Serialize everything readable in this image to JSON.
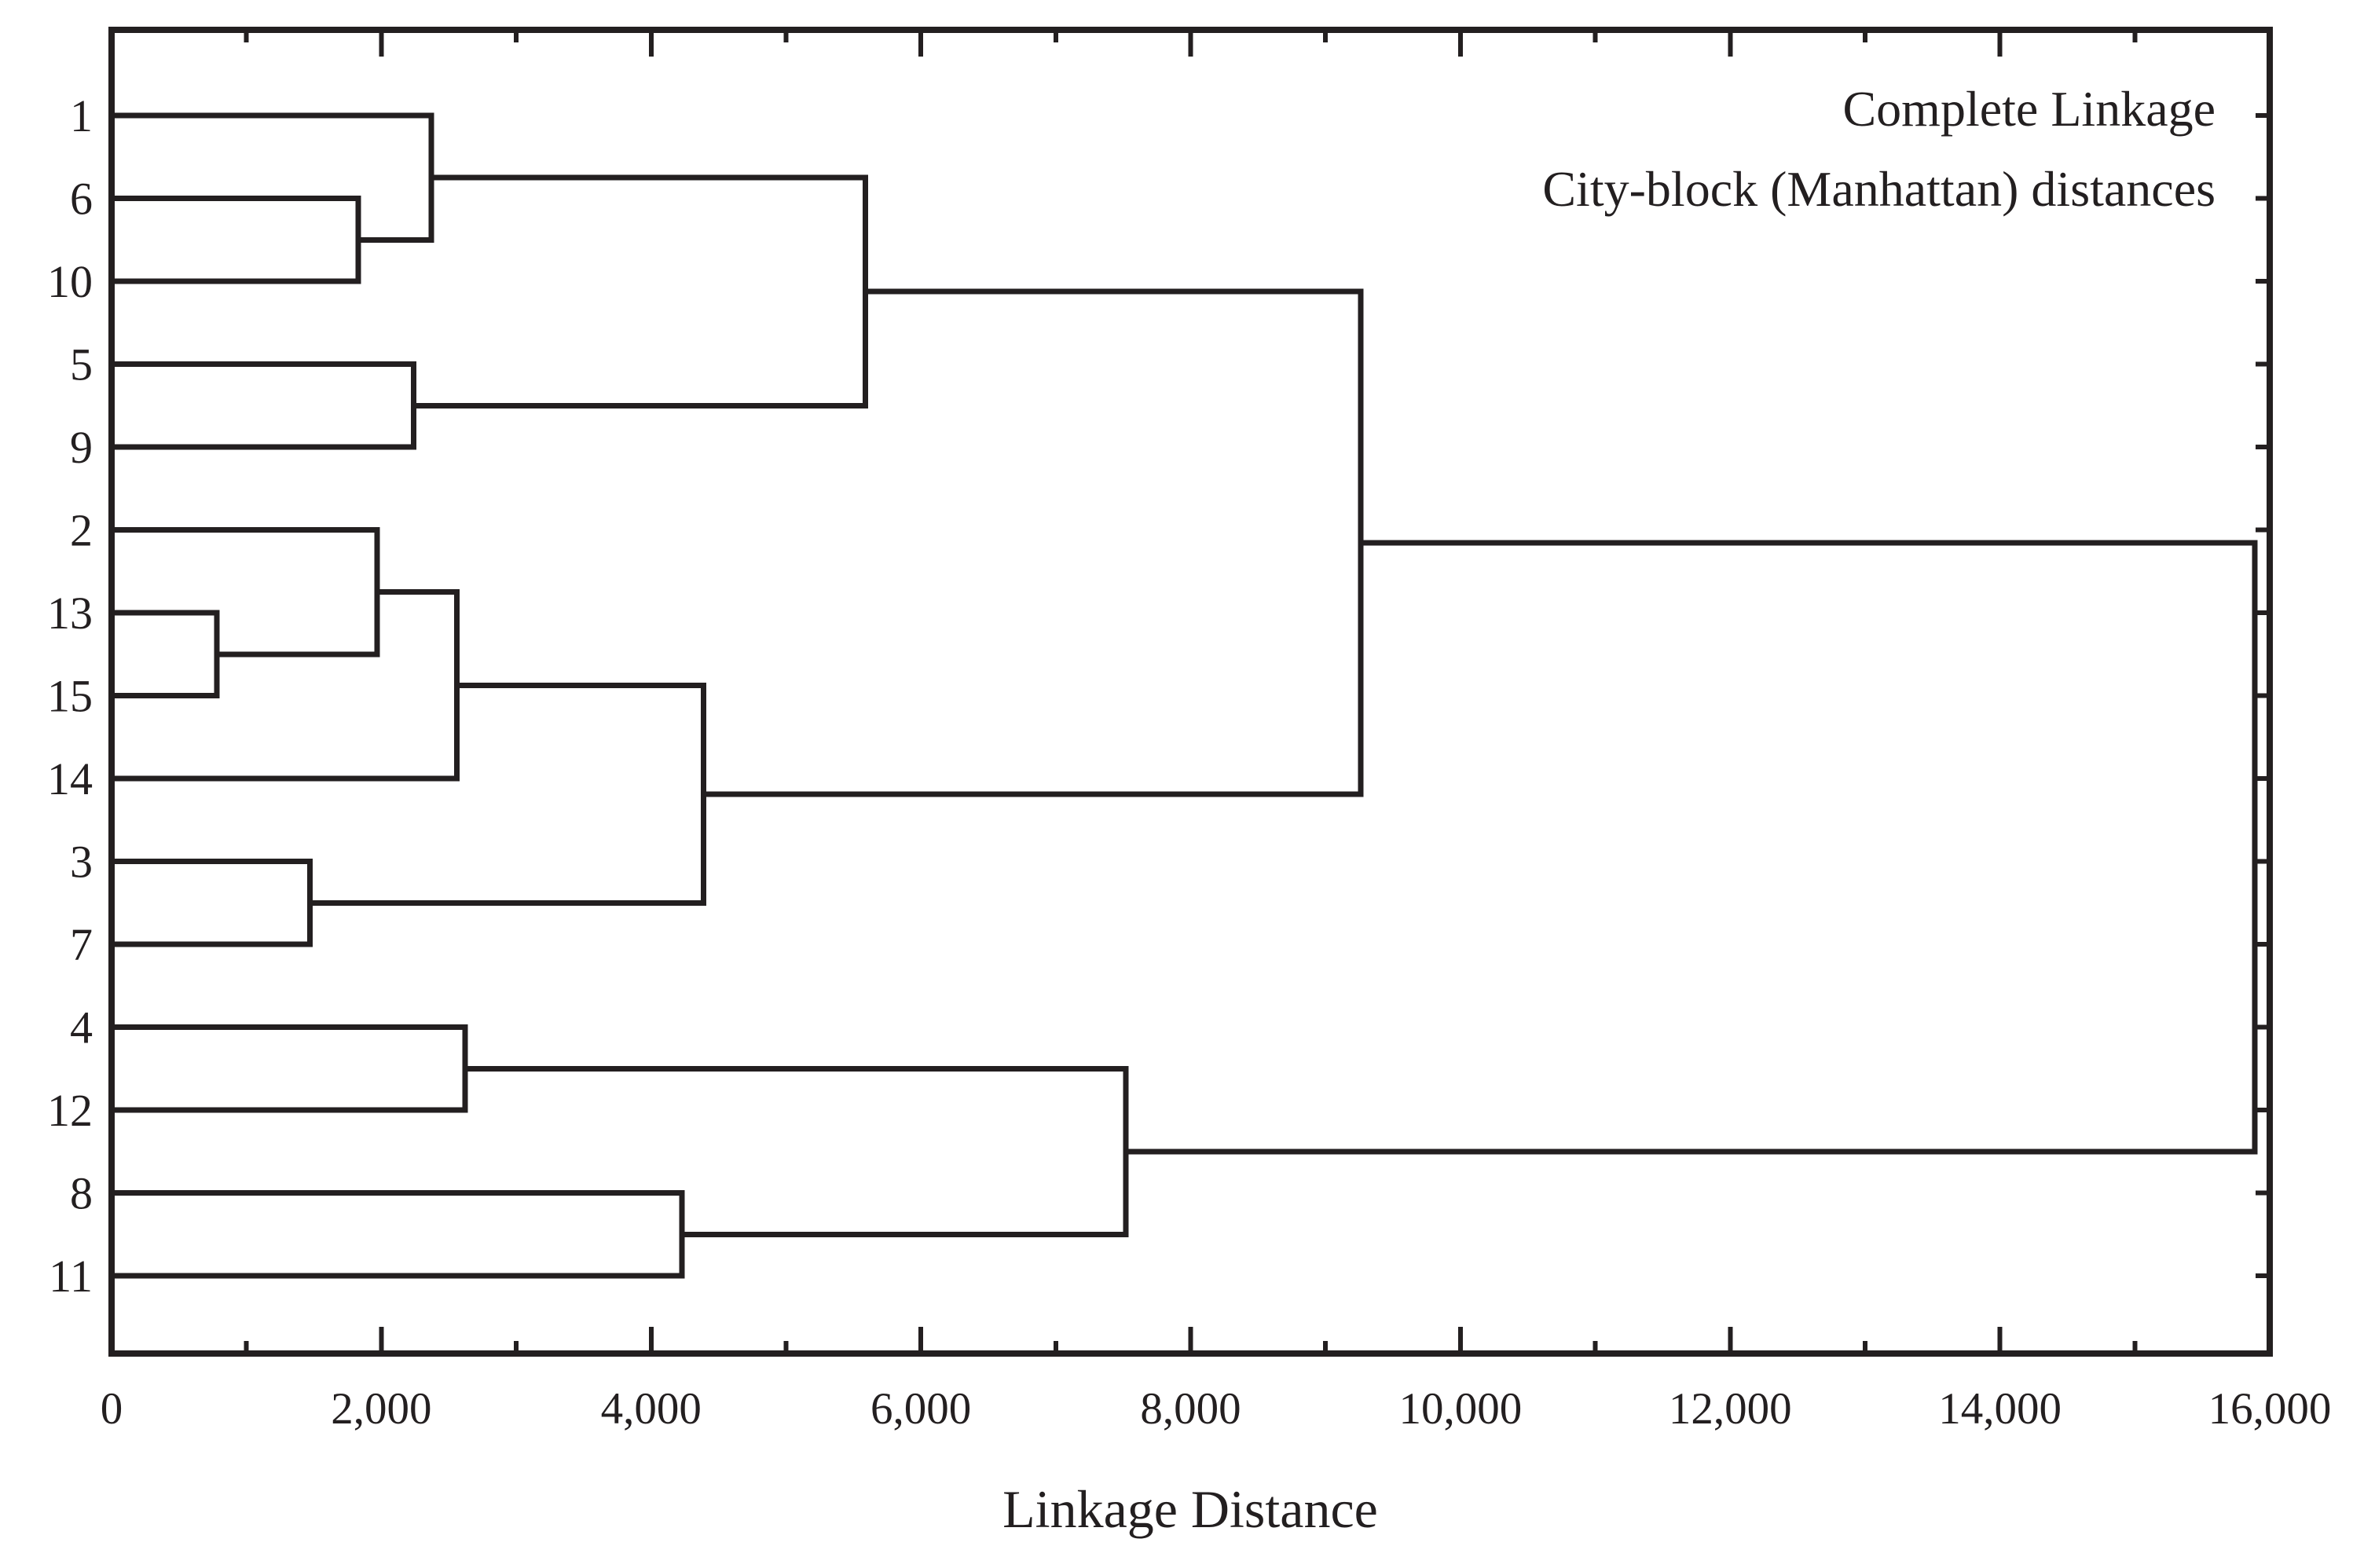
{
  "chart_data": {
    "type": "dendrogram",
    "orientation": "horizontal",
    "title_lines": [
      "Complete Linkage",
      "City-block (Manhattan) distances"
    ],
    "xlabel": "Linkage Distance",
    "x_axis": {
      "min": 0,
      "max": 16000,
      "major_tick_step": 2000,
      "minor_tick_step": 1000,
      "tick_labels": [
        "0",
        "2,000",
        "4,000",
        "6,000",
        "8,000",
        "10,000",
        "12,000",
        "14,000",
        "16,000"
      ],
      "grid": false
    },
    "leaf_order": [
      "1",
      "6",
      "10",
      "5",
      "9",
      "2",
      "13",
      "15",
      "14",
      "3",
      "7",
      "4",
      "12",
      "8",
      "11"
    ],
    "merges": [
      {
        "id": "n1",
        "a": "6",
        "b": "10",
        "distance": 1830
      },
      {
        "id": "n2",
        "a": "1",
        "b": "n1",
        "distance": 2370
      },
      {
        "id": "n3",
        "a": "5",
        "b": "9",
        "distance": 2240
      },
      {
        "id": "n4",
        "a": "n2",
        "b": "n3",
        "distance": 5590
      },
      {
        "id": "n5",
        "a": "13",
        "b": "15",
        "distance": 780
      },
      {
        "id": "n6",
        "a": "2",
        "b": "n5",
        "distance": 1970
      },
      {
        "id": "n7",
        "a": "n6",
        "b": "14",
        "distance": 2560
      },
      {
        "id": "n8",
        "a": "3",
        "b": "7",
        "distance": 1470
      },
      {
        "id": "n9",
        "a": "n7",
        "b": "n8",
        "distance": 4390
      },
      {
        "id": "n10",
        "a": "n4",
        "b": "n9",
        "distance": 9260
      },
      {
        "id": "n11",
        "a": "4",
        "b": "12",
        "distance": 2620
      },
      {
        "id": "n12",
        "a": "8",
        "b": "11",
        "distance": 4230
      },
      {
        "id": "n13",
        "a": "n11",
        "b": "n12",
        "distance": 7520
      },
      {
        "id": "n14",
        "a": "n10",
        "b": "n13",
        "distance": 15890
      }
    ],
    "line_color": "#231f20",
    "background_color": "#ffffff",
    "legend_position": "none"
  }
}
